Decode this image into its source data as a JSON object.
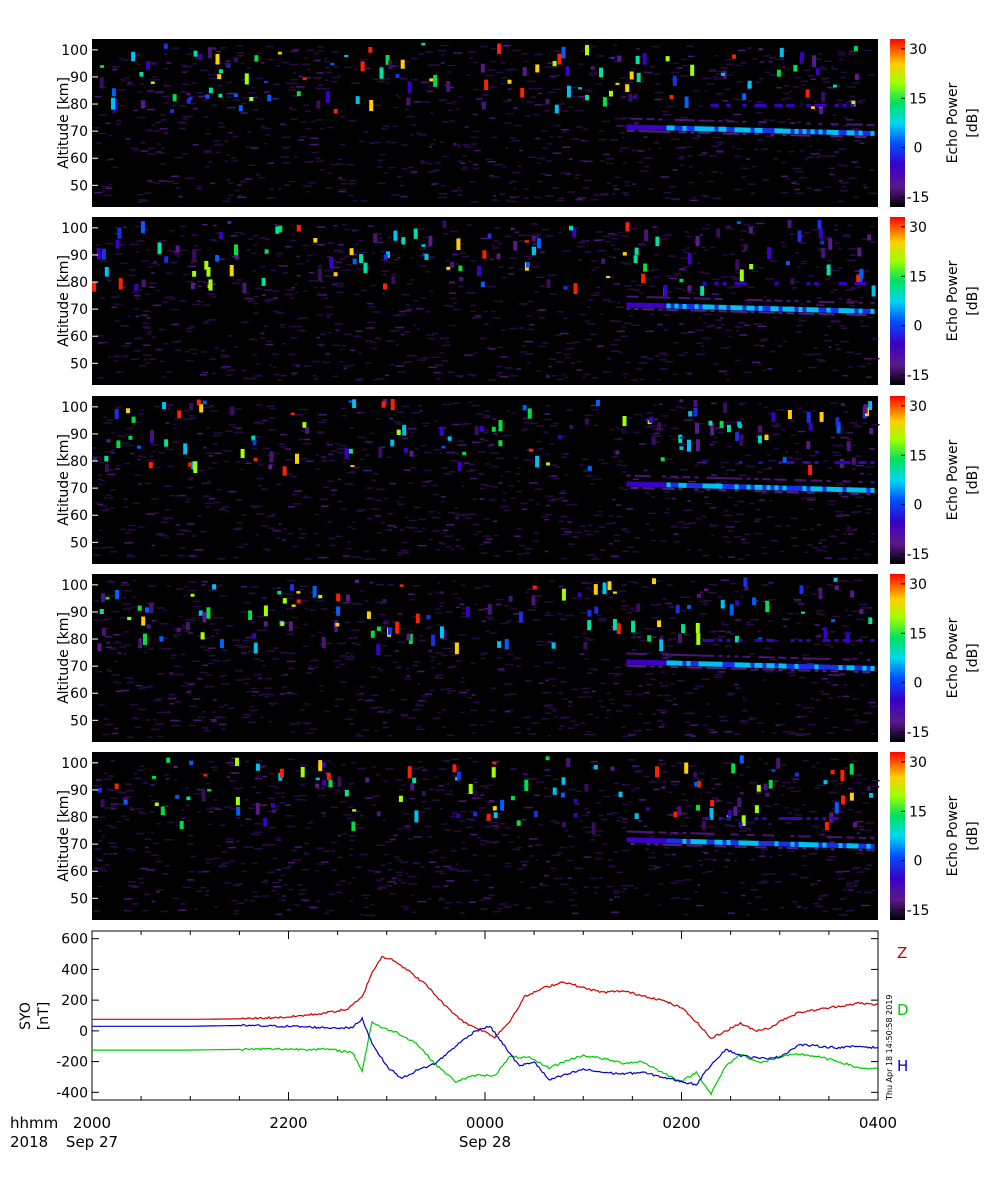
{
  "bottom_labels": {
    "time_label": "hhmm",
    "year_label": "2018"
  },
  "stamp": "Thu Apr 18 14:50:58 2019",
  "chart_data": [
    {
      "type": "heatmap",
      "ylabel": "Altitude [km]",
      "y_ticks": [
        50,
        60,
        70,
        80,
        90,
        100
      ],
      "ylim": [
        42,
        104
      ],
      "colorbar": {
        "label_line1": "Echo Power",
        "label_line2": "[dB]",
        "ticks": [
          30,
          15,
          0,
          -15
        ],
        "range": [
          -18,
          33
        ]
      }
    },
    {
      "type": "heatmap",
      "ylabel": "Altitude [km]",
      "y_ticks": [
        50,
        60,
        70,
        80,
        90,
        100
      ],
      "ylim": [
        42,
        104
      ],
      "colorbar": {
        "label_line1": "Echo Power",
        "label_line2": "[dB]",
        "ticks": [
          30,
          15,
          0,
          -15
        ],
        "range": [
          -18,
          33
        ]
      }
    },
    {
      "type": "heatmap",
      "ylabel": "Altitude [km]",
      "y_ticks": [
        50,
        60,
        70,
        80,
        90,
        100
      ],
      "ylim": [
        42,
        104
      ],
      "colorbar": {
        "label_line1": "Echo Power",
        "label_line2": "[dB]",
        "ticks": [
          30,
          15,
          0,
          -15
        ],
        "range": [
          -18,
          33
        ]
      }
    },
    {
      "type": "heatmap",
      "ylabel": "Altitude [km]",
      "y_ticks": [
        50,
        60,
        70,
        80,
        90,
        100
      ],
      "ylim": [
        42,
        104
      ],
      "colorbar": {
        "label_line1": "Echo Power",
        "label_line2": "[dB]",
        "ticks": [
          30,
          15,
          0,
          -15
        ],
        "range": [
          -18,
          33
        ]
      }
    },
    {
      "type": "heatmap",
      "ylabel": "Altitude [km]",
      "y_ticks": [
        50,
        60,
        70,
        80,
        90,
        100
      ],
      "ylim": [
        42,
        104
      ],
      "colorbar": {
        "label_line1": "Echo Power",
        "label_line2": "[dB]",
        "ticks": [
          30,
          15,
          0,
          -15
        ],
        "range": [
          -18,
          33
        ]
      }
    },
    {
      "type": "line",
      "ylabel_line1": "SYO",
      "ylabel_line2": "[nT]",
      "ylim": [
        -450,
        650
      ],
      "y_ticks": [
        600,
        400,
        200,
        0,
        -200,
        -400
      ],
      "x_tick_labels": [
        "2000",
        "2200",
        "0000",
        "0200",
        "0400"
      ],
      "x_date_labels": [
        "Sep 27",
        "Sep 28"
      ],
      "x_hours": [
        0,
        8
      ],
      "series": [
        {
          "name": "Z",
          "color": "#cc0000",
          "points": [
            [
              0,
              75
            ],
            [
              1,
              75
            ],
            [
              1.5,
              78
            ],
            [
              2,
              90
            ],
            [
              2.3,
              110
            ],
            [
              2.6,
              140
            ],
            [
              2.75,
              220
            ],
            [
              2.85,
              380
            ],
            [
              2.95,
              480
            ],
            [
              3.05,
              470
            ],
            [
              3.2,
              400
            ],
            [
              3.4,
              300
            ],
            [
              3.6,
              160
            ],
            [
              3.8,
              50
            ],
            [
              3.95,
              10
            ],
            [
              4.1,
              -40
            ],
            [
              4.25,
              60
            ],
            [
              4.4,
              220
            ],
            [
              4.6,
              280
            ],
            [
              4.8,
              320
            ],
            [
              5.0,
              280
            ],
            [
              5.2,
              250
            ],
            [
              5.4,
              260
            ],
            [
              5.6,
              230
            ],
            [
              5.8,
              200
            ],
            [
              6.0,
              150
            ],
            [
              6.15,
              60
            ],
            [
              6.3,
              -50
            ],
            [
              6.45,
              0
            ],
            [
              6.6,
              50
            ],
            [
              6.75,
              0
            ],
            [
              6.9,
              20
            ],
            [
              7.05,
              80
            ],
            [
              7.2,
              120
            ],
            [
              7.4,
              140
            ],
            [
              7.6,
              160
            ],
            [
              7.8,
              180
            ],
            [
              8.0,
              170
            ]
          ]
        },
        {
          "name": "D",
          "color": "#00cc00",
          "points": [
            [
              0,
              -125
            ],
            [
              1,
              -125
            ],
            [
              1.8,
              -118
            ],
            [
              2.4,
              -120
            ],
            [
              2.65,
              -140
            ],
            [
              2.75,
              -260
            ],
            [
              2.85,
              60
            ],
            [
              2.95,
              20
            ],
            [
              3.1,
              -10
            ],
            [
              3.3,
              -80
            ],
            [
              3.5,
              -220
            ],
            [
              3.7,
              -330
            ],
            [
              3.9,
              -290
            ],
            [
              4.1,
              -290
            ],
            [
              4.25,
              -170
            ],
            [
              4.45,
              -175
            ],
            [
              4.65,
              -240
            ],
            [
              4.85,
              -190
            ],
            [
              5.0,
              -160
            ],
            [
              5.2,
              -180
            ],
            [
              5.4,
              -210
            ],
            [
              5.6,
              -200
            ],
            [
              5.8,
              -270
            ],
            [
              6.0,
              -330
            ],
            [
              6.15,
              -270
            ],
            [
              6.3,
              -410
            ],
            [
              6.45,
              -230
            ],
            [
              6.6,
              -150
            ],
            [
              6.8,
              -210
            ],
            [
              7.0,
              -170
            ],
            [
              7.2,
              -150
            ],
            [
              7.4,
              -170
            ],
            [
              7.6,
              -200
            ],
            [
              7.8,
              -240
            ],
            [
              8.0,
              -250
            ]
          ]
        },
        {
          "name": "H",
          "color": "#0000cc",
          "points": [
            [
              0,
              30
            ],
            [
              1,
              30
            ],
            [
              1.5,
              35
            ],
            [
              2,
              30
            ],
            [
              2.4,
              20
            ],
            [
              2.65,
              20
            ],
            [
              2.75,
              80
            ],
            [
              2.85,
              -80
            ],
            [
              3.0,
              -230
            ],
            [
              3.15,
              -310
            ],
            [
              3.3,
              -260
            ],
            [
              3.5,
              -210
            ],
            [
              3.7,
              -100
            ],
            [
              3.9,
              0
            ],
            [
              4.05,
              30
            ],
            [
              4.2,
              -100
            ],
            [
              4.35,
              -230
            ],
            [
              4.5,
              -200
            ],
            [
              4.65,
              -320
            ],
            [
              4.85,
              -280
            ],
            [
              5.0,
              -250
            ],
            [
              5.2,
              -270
            ],
            [
              5.4,
              -280
            ],
            [
              5.6,
              -270
            ],
            [
              5.8,
              -300
            ],
            [
              6.0,
              -330
            ],
            [
              6.15,
              -350
            ],
            [
              6.3,
              -220
            ],
            [
              6.45,
              -120
            ],
            [
              6.6,
              -160
            ],
            [
              6.8,
              -180
            ],
            [
              7.0,
              -170
            ],
            [
              7.2,
              -90
            ],
            [
              7.4,
              -100
            ],
            [
              7.6,
              -110
            ],
            [
              7.8,
              -100
            ],
            [
              8.0,
              -110
            ]
          ]
        }
      ]
    }
  ]
}
